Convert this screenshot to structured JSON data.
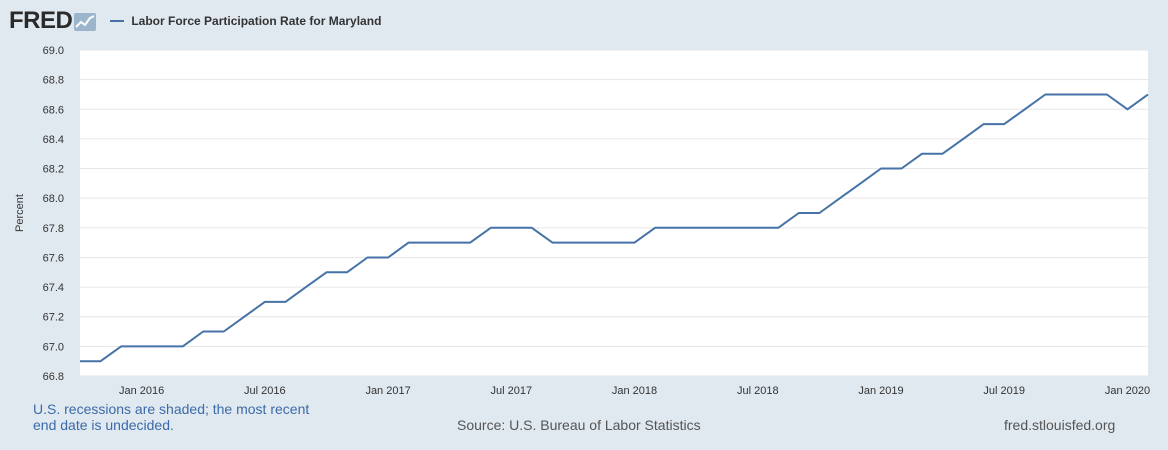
{
  "header": {
    "logo_text": "FRED",
    "legend_label": "Labor Force Participation Rate for Maryland"
  },
  "footer": {
    "note": "U.S. recessions are shaded; the most recent end date is undecided.",
    "source": "Source: U.S. Bureau of Labor Statistics",
    "url": "fred.stlouisfed.org"
  },
  "colors": {
    "series": "#4572a7",
    "background": "#e1e9f0",
    "plot_background": "#ffffff",
    "note_text": "#3b6aa8"
  },
  "chart_data": {
    "type": "line",
    "title": "Labor Force Participation Rate for Maryland",
    "xlabel": "",
    "ylabel": "Percent",
    "ylim": [
      66.8,
      69.0
    ],
    "yticks": [
      "66.8",
      "67.0",
      "67.2",
      "67.4",
      "67.6",
      "67.8",
      "68.0",
      "68.2",
      "68.4",
      "68.6",
      "68.8",
      "69.0"
    ],
    "xticks": [
      "Jan 2016",
      "Jul 2016",
      "Jan 2017",
      "Jul 2017",
      "Jan 2018",
      "Jul 2018",
      "Jan 2019",
      "Jul 2019",
      "Jan 2020"
    ],
    "xtick_dates": [
      "2016-01",
      "2016-07",
      "2017-01",
      "2017-07",
      "2018-01",
      "2018-07",
      "2019-01",
      "2019-07",
      "2020-01"
    ],
    "xlim": [
      "2015-10",
      "2020-02"
    ],
    "grid": true,
    "legend": "top-left",
    "series": [
      {
        "name": "Labor Force Participation Rate for Maryland",
        "x": [
          "2015-10",
          "2015-11",
          "2015-12",
          "2016-01",
          "2016-02",
          "2016-03",
          "2016-04",
          "2016-05",
          "2016-06",
          "2016-07",
          "2016-08",
          "2016-09",
          "2016-10",
          "2016-11",
          "2016-12",
          "2017-01",
          "2017-02",
          "2017-03",
          "2017-04",
          "2017-05",
          "2017-06",
          "2017-07",
          "2017-08",
          "2017-09",
          "2017-10",
          "2017-11",
          "2017-12",
          "2018-01",
          "2018-02",
          "2018-03",
          "2018-04",
          "2018-05",
          "2018-06",
          "2018-07",
          "2018-08",
          "2018-09",
          "2018-10",
          "2018-11",
          "2018-12",
          "2019-01",
          "2019-02",
          "2019-03",
          "2019-04",
          "2019-05",
          "2019-06",
          "2019-07",
          "2019-08",
          "2019-09",
          "2019-10",
          "2019-11",
          "2019-12",
          "2020-01",
          "2020-02"
        ],
        "values": [
          66.9,
          66.9,
          67.0,
          67.0,
          67.0,
          67.0,
          67.1,
          67.1,
          67.2,
          67.3,
          67.3,
          67.4,
          67.5,
          67.5,
          67.6,
          67.6,
          67.7,
          67.7,
          67.7,
          67.7,
          67.8,
          67.8,
          67.8,
          67.7,
          67.7,
          67.7,
          67.7,
          67.7,
          67.8,
          67.8,
          67.8,
          67.8,
          67.8,
          67.8,
          67.8,
          67.9,
          67.9,
          68.0,
          68.1,
          68.2,
          68.2,
          68.3,
          68.3,
          68.4,
          68.5,
          68.5,
          68.6,
          68.7,
          68.7,
          68.7,
          68.7,
          68.6,
          68.7
        ]
      }
    ]
  }
}
